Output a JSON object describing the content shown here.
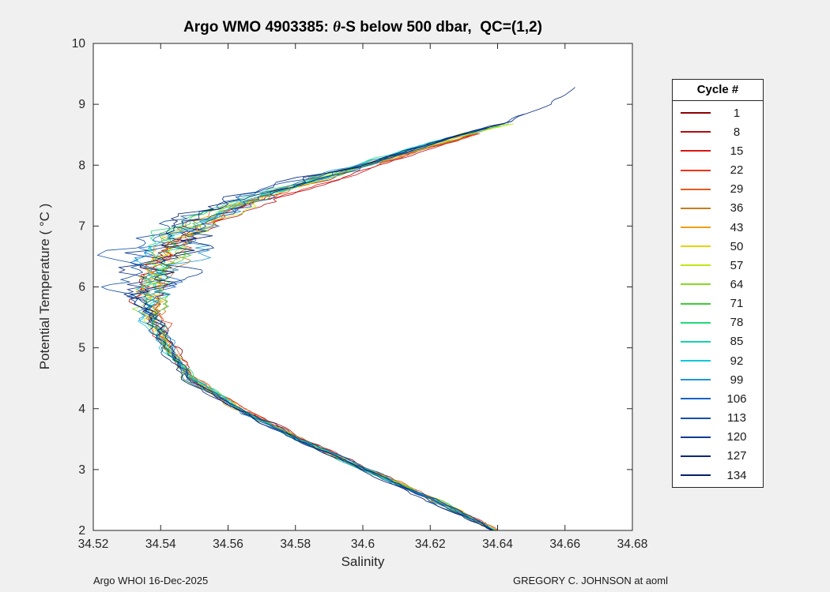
{
  "figure": {
    "background": "#f0f0f0",
    "axes_background": "#ffffff"
  },
  "chart_data": {
    "type": "line",
    "title_prefix": "Argo WMO 4903385: ",
    "title_theta": "θ",
    "title_suffix": "-S below 500 dbar,  QC=(1,2)",
    "xlabel": "Salinity",
    "ylabel": "Potential Temperature ( °C )",
    "xlim": [
      34.52,
      34.68
    ],
    "ylim": [
      2,
      10
    ],
    "xtick_values": [
      34.52,
      34.54,
      34.56,
      34.58,
      34.6,
      34.62,
      34.64,
      34.66,
      34.68
    ],
    "xtick_labels": [
      "34.52",
      "34.54",
      "34.56",
      "34.58",
      "34.6",
      "34.62",
      "34.64",
      "34.66",
      "34.68"
    ],
    "ytick_values": [
      2,
      3,
      4,
      5,
      6,
      7,
      8,
      9,
      10
    ],
    "ytick_labels": [
      "2",
      "3",
      "4",
      "5",
      "6",
      "7",
      "8",
      "9",
      "10"
    ],
    "legend_title": "Cycle #",
    "legend_position": "right-outside",
    "grid": false,
    "series": [
      {
        "cycle": "1",
        "color": "#8B0000",
        "max_theta": 8.45
      },
      {
        "cycle": "8",
        "color": "#B40B0B",
        "max_theta": 8.52
      },
      {
        "cycle": "15",
        "color": "#DC1414",
        "max_theta": 8.55
      },
      {
        "cycle": "22",
        "color": "#F03214",
        "max_theta": 8.6
      },
      {
        "cycle": "29",
        "color": "#E85A1E",
        "max_theta": 8.55
      },
      {
        "cycle": "36",
        "color": "#C87D1E",
        "max_theta": 8.62
      },
      {
        "cycle": "43",
        "color": "#F0A014",
        "max_theta": 8.58
      },
      {
        "cycle": "50",
        "color": "#E6D200",
        "max_theta": 8.66
      },
      {
        "cycle": "57",
        "color": "#BEE614",
        "max_theta": 8.7
      },
      {
        "cycle": "64",
        "color": "#82DC1E",
        "max_theta": 8.7
      },
      {
        "cycle": "71",
        "color": "#3CCD32",
        "max_theta": 8.66
      },
      {
        "cycle": "78",
        "color": "#1EDC78",
        "max_theta": 8.6
      },
      {
        "cycle": "85",
        "color": "#14D2AF",
        "max_theta": 8.55
      },
      {
        "cycle": "92",
        "color": "#0AC8DC",
        "max_theta": 8.5
      },
      {
        "cycle": "99",
        "color": "#1E96D2",
        "max_theta": 8.55
      },
      {
        "cycle": "106",
        "color": "#1464C8",
        "max_theta": 8.62
      },
      {
        "cycle": "113",
        "color": "#1050A5",
        "max_theta": 8.72
      },
      {
        "cycle": "120",
        "color": "#0A3C91",
        "max_theta": 8.85
      },
      {
        "cycle": "127",
        "color": "#07287D",
        "max_theta": 9.3
      },
      {
        "cycle": "134",
        "color": "#051E69",
        "max_theta": 8.7
      }
    ],
    "base_curve": {
      "theta": [
        2.0,
        2.2,
        2.5,
        3.0,
        3.5,
        4.0,
        4.5,
        5.0,
        5.5,
        6.0,
        6.3,
        6.6,
        6.9,
        7.1,
        7.3,
        7.5,
        7.7,
        7.9,
        8.1,
        8.3,
        8.5,
        8.7,
        8.9,
        9.1,
        9.3
      ],
      "salinity": [
        34.639,
        34.632,
        34.621,
        34.601,
        34.581,
        34.563,
        34.549,
        34.5425,
        34.5375,
        34.536,
        34.5375,
        34.541,
        34.547,
        34.553,
        34.561,
        34.571,
        34.583,
        34.594,
        34.606,
        34.618,
        34.63,
        34.645,
        34.652,
        34.659,
        34.667
      ]
    }
  },
  "footer": {
    "left": "Argo WHOI 16-Dec-2025",
    "right": "GREGORY C. JOHNSON at aoml"
  }
}
